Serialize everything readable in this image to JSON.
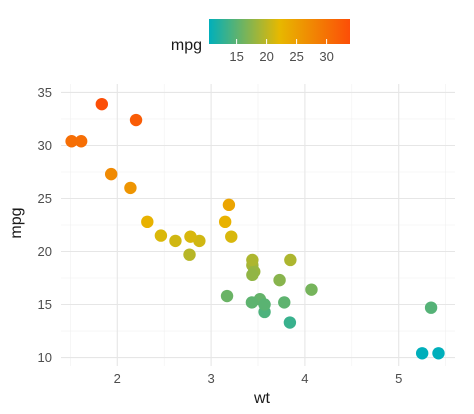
{
  "chart_data": {
    "type": "scatter",
    "title": "",
    "xlabel": "wt",
    "ylabel": "mpg",
    "xlim": [
      1.4,
      5.6
    ],
    "ylim": [
      9.2,
      35.8
    ],
    "x_ticks": [
      2,
      3,
      4,
      5
    ],
    "y_ticks": [
      10,
      15,
      20,
      25,
      30,
      35
    ],
    "grid": true,
    "legend": {
      "title": "mpg",
      "placement": "top",
      "type": "colorbar",
      "ticks": [
        15,
        20,
        25,
        30
      ],
      "range": [
        10.4,
        33.9
      ],
      "colors": [
        "#00AFBB",
        "#E7B800",
        "#FC4E07"
      ]
    },
    "points": [
      {
        "x": 2.62,
        "y": 21.0
      },
      {
        "x": 2.875,
        "y": 21.0
      },
      {
        "x": 2.32,
        "y": 22.8
      },
      {
        "x": 3.215,
        "y": 21.4
      },
      {
        "x": 3.44,
        "y": 18.7
      },
      {
        "x": 3.46,
        "y": 18.1
      },
      {
        "x": 3.57,
        "y": 14.3
      },
      {
        "x": 3.19,
        "y": 24.4
      },
      {
        "x": 3.15,
        "y": 22.8
      },
      {
        "x": 3.44,
        "y": 19.2
      },
      {
        "x": 3.44,
        "y": 17.8
      },
      {
        "x": 4.07,
        "y": 16.4
      },
      {
        "x": 3.73,
        "y": 17.3
      },
      {
        "x": 3.78,
        "y": 15.2
      },
      {
        "x": 5.25,
        "y": 10.4
      },
      {
        "x": 5.424,
        "y": 10.4
      },
      {
        "x": 5.345,
        "y": 14.7
      },
      {
        "x": 2.2,
        "y": 32.4
      },
      {
        "x": 1.615,
        "y": 30.4
      },
      {
        "x": 1.835,
        "y": 33.9
      },
      {
        "x": 2.465,
        "y": 21.5
      },
      {
        "x": 3.52,
        "y": 15.5
      },
      {
        "x": 3.435,
        "y": 15.2
      },
      {
        "x": 3.84,
        "y": 13.3
      },
      {
        "x": 3.845,
        "y": 19.2
      },
      {
        "x": 1.935,
        "y": 27.3
      },
      {
        "x": 2.14,
        "y": 26.0
      },
      {
        "x": 1.513,
        "y": 30.4
      },
      {
        "x": 3.17,
        "y": 15.8
      },
      {
        "x": 2.77,
        "y": 19.7
      },
      {
        "x": 3.57,
        "y": 15.0
      },
      {
        "x": 2.78,
        "y": 21.4
      }
    ]
  }
}
